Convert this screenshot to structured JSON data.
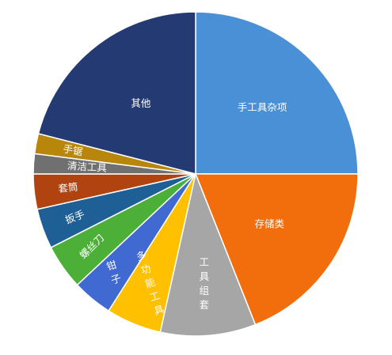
{
  "chart_data": {
    "type": "pie",
    "categories": [
      "手工具杂项",
      "存储类",
      "工具组套",
      "多功能工具",
      "钳子",
      "螺丝刀",
      "扳手",
      "套筒",
      "清洁工具",
      "手锯",
      "其他"
    ],
    "values": [
      25.0,
      19.0,
      9.5,
      5.5,
      4.0,
      4.5,
      4.0,
      3.5,
      2.0,
      2.0,
      21.0
    ],
    "colors": [
      "#4A90D6",
      "#F26E0C",
      "#A6A6A6",
      "#FFC000",
      "#4169D2",
      "#4CAF38",
      "#1E5F96",
      "#B0430F",
      "#707070",
      "#B8860B",
      "#243A73"
    ],
    "start_angle_deg": 0,
    "direction": "clockwise",
    "legend": "none"
  }
}
